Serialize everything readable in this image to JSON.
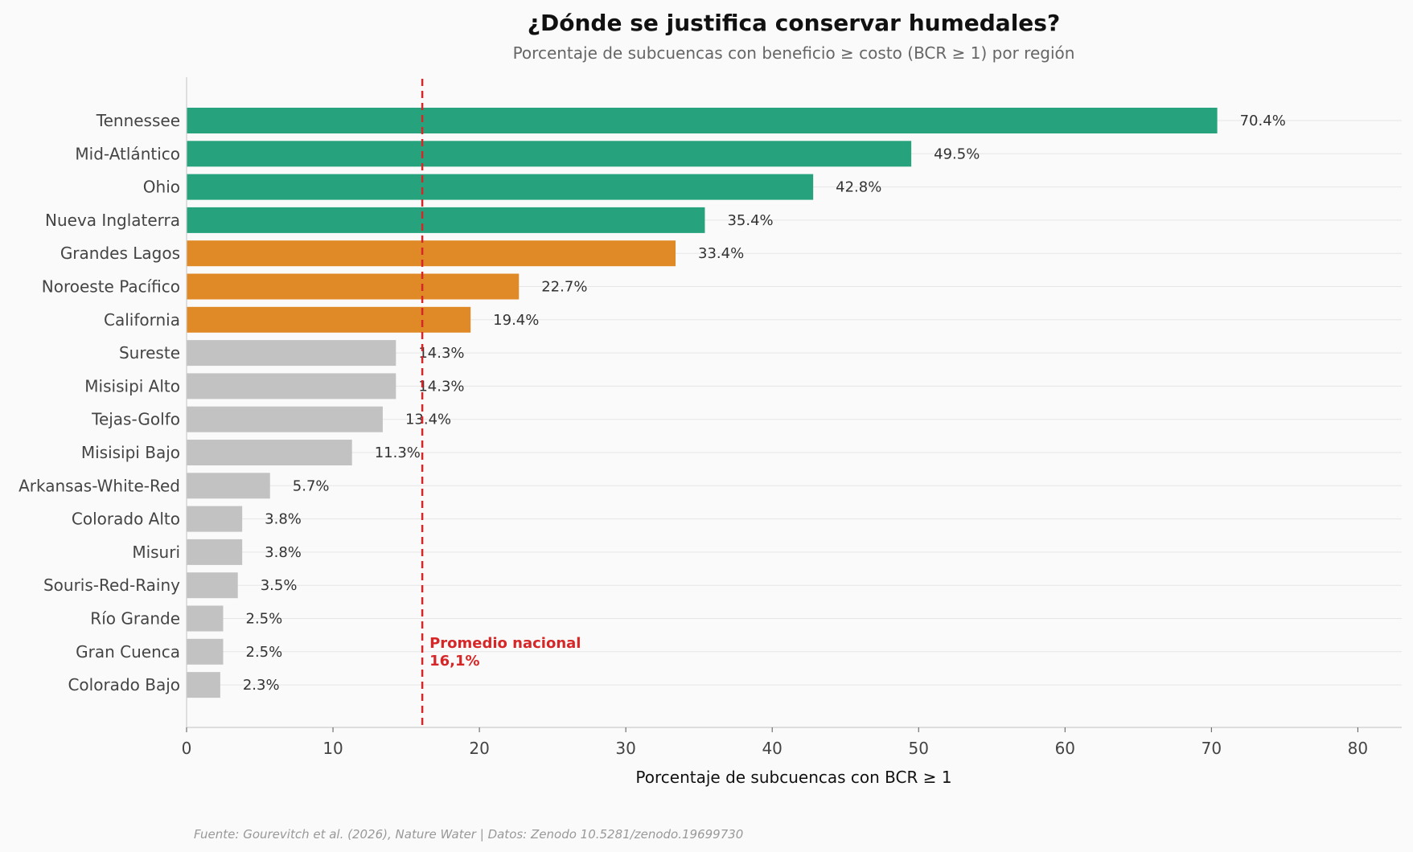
{
  "chart_data": {
    "type": "bar",
    "orientation": "horizontal",
    "title": "¿Dónde se justifica conservar humedales?",
    "subtitle": "Porcentaje de subcuencas con beneficio ≥ costo (BCR ≥ 1) por región",
    "xlabel": "Porcentaje de subcuencas con BCR ≥ 1",
    "xlim": [
      0,
      83
    ],
    "xticks": [
      0,
      10,
      20,
      30,
      40,
      50,
      60,
      70,
      80
    ],
    "grid": "horizontal",
    "categories": [
      "Tennessee",
      "Mid-Atlántico",
      "Ohio",
      "Nueva Inglaterra",
      "Grandes Lagos",
      "Noroeste Pacífico",
      "California",
      "Sureste",
      "Misisipi Alto",
      "Tejas-Golfo",
      "Misisipi Bajo",
      "Arkansas-White-Red",
      "Colorado Alto",
      "Misuri",
      "Souris-Red-Rainy",
      "Río Grande",
      "Gran Cuenca",
      "Colorado Bajo"
    ],
    "values": [
      70.4,
      49.5,
      42.8,
      35.4,
      33.4,
      22.7,
      19.4,
      14.3,
      14.3,
      13.4,
      11.3,
      5.7,
      3.8,
      3.8,
      3.5,
      2.5,
      2.5,
      2.3
    ],
    "value_labels": [
      "70.4%",
      "49.5%",
      "42.8%",
      "35.4%",
      "33.4%",
      "22.7%",
      "19.4%",
      "14.3%",
      "14.3%",
      "13.4%",
      "11.3%",
      "5.7%",
      "3.8%",
      "3.8%",
      "3.5%",
      "2.5%",
      "2.5%",
      "2.3%"
    ],
    "colors": {
      "high": "#26a37d",
      "mid": "#e08a27",
      "low": "#c2c2c2",
      "reference": "#d62728"
    },
    "bar_color_groups": [
      "high",
      "high",
      "high",
      "high",
      "mid",
      "mid",
      "mid",
      "low",
      "low",
      "low",
      "low",
      "low",
      "low",
      "low",
      "low",
      "low",
      "low",
      "low"
    ],
    "reference_line": {
      "value": 16.1,
      "label_line1": "Promedio nacional",
      "label_line2": "16,1%"
    },
    "source": "Fuente: Gourevitch et al. (2026), Nature Water | Datos: Zenodo 10.5281/zenodo.19699730"
  }
}
